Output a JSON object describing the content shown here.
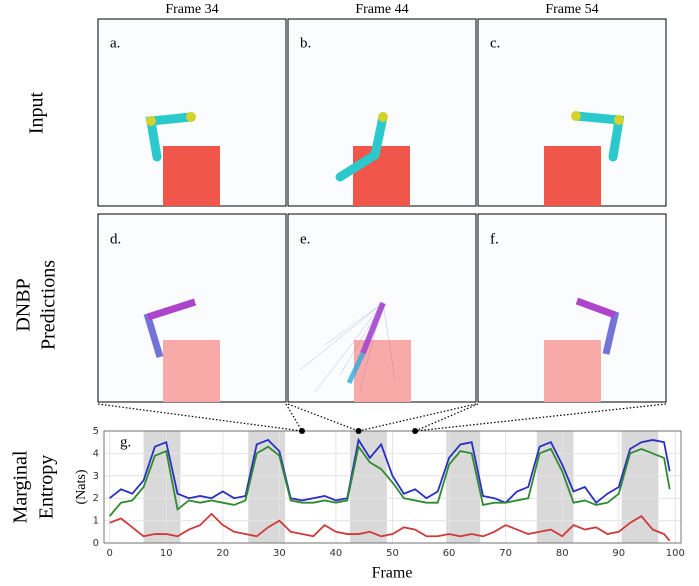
{
  "column_headers": [
    "Frame 34",
    "Frame 44",
    "Frame 54"
  ],
  "row_labels": {
    "input": "Input",
    "predictions": [
      "DNBP",
      "Predictions"
    ]
  },
  "panel_labels": [
    "a.",
    "b.",
    "c.",
    "d.",
    "e.",
    "f."
  ],
  "chart_data": {
    "type": "line",
    "panel_label": "g.",
    "ylabel": [
      "Marginal",
      "Entropy"
    ],
    "yunit": "(Nats)",
    "xlabel": "Frame",
    "xlim": [
      -1,
      101
    ],
    "ylim": [
      0,
      5
    ],
    "xticks": [
      0,
      10,
      20,
      30,
      40,
      50,
      60,
      70,
      80,
      90,
      100
    ],
    "yticks": [
      0,
      1,
      2,
      3,
      4,
      5
    ],
    "grid": true,
    "shaded_spans": [
      [
        6,
        12.5
      ],
      [
        24.5,
        31
      ],
      [
        42.5,
        49
      ],
      [
        59.5,
        65.5
      ],
      [
        75.5,
        82
      ],
      [
        90.5,
        97
      ]
    ],
    "marked_frames": [
      34,
      44,
      54
    ],
    "x": [
      0,
      2,
      4,
      6,
      8,
      10,
      12,
      14,
      16,
      18,
      20,
      22,
      24,
      26,
      28,
      30,
      32,
      34,
      36,
      38,
      40,
      42,
      44,
      46,
      48,
      50,
      52,
      54,
      56,
      58,
      60,
      62,
      64,
      66,
      68,
      70,
      72,
      74,
      76,
      78,
      80,
      82,
      84,
      86,
      88,
      90,
      92,
      94,
      96,
      98,
      99
    ],
    "series": [
      {
        "color": "#2b2fc4",
        "values": [
          2.0,
          2.4,
          2.2,
          2.8,
          4.3,
          4.5,
          2.2,
          2.0,
          2.1,
          2.0,
          2.3,
          2.0,
          2.1,
          4.4,
          4.6,
          4.1,
          2.0,
          1.9,
          2.0,
          2.1,
          1.9,
          2.0,
          4.6,
          3.8,
          4.4,
          3.0,
          2.2,
          2.4,
          2.0,
          2.3,
          3.8,
          4.4,
          4.5,
          2.1,
          2.0,
          1.8,
          2.3,
          2.5,
          4.3,
          4.5,
          3.5,
          2.3,
          2.5,
          1.8,
          2.2,
          2.5,
          4.2,
          4.5,
          4.6,
          4.5,
          3.2
        ]
      },
      {
        "color": "#2e8b2e",
        "values": [
          1.2,
          1.8,
          1.9,
          2.5,
          3.9,
          4.1,
          1.5,
          1.9,
          1.8,
          1.9,
          1.8,
          1.7,
          1.9,
          4.0,
          4.3,
          3.9,
          1.9,
          1.8,
          1.8,
          1.9,
          1.8,
          1.9,
          4.3,
          3.6,
          3.3,
          2.7,
          2.0,
          1.9,
          1.8,
          1.8,
          3.5,
          4.1,
          4.0,
          1.7,
          1.8,
          1.8,
          1.9,
          2.0,
          4.0,
          4.2,
          3.2,
          1.8,
          1.9,
          1.7,
          1.8,
          2.2,
          4.0,
          4.2,
          4.0,
          3.8,
          2.4
        ]
      },
      {
        "color": "#d03a3a",
        "values": [
          0.9,
          1.1,
          0.7,
          0.3,
          0.4,
          0.4,
          0.3,
          0.6,
          0.8,
          1.3,
          0.8,
          0.5,
          0.4,
          0.3,
          0.7,
          1.0,
          0.5,
          0.4,
          0.3,
          0.8,
          0.5,
          0.4,
          0.4,
          0.5,
          0.3,
          0.4,
          0.7,
          0.6,
          0.3,
          0.3,
          0.4,
          0.3,
          0.4,
          0.3,
          0.5,
          0.8,
          0.6,
          0.4,
          0.5,
          0.6,
          0.3,
          0.8,
          0.6,
          0.7,
          0.4,
          0.5,
          0.9,
          1.2,
          0.6,
          0.4,
          0.1
        ]
      }
    ]
  }
}
